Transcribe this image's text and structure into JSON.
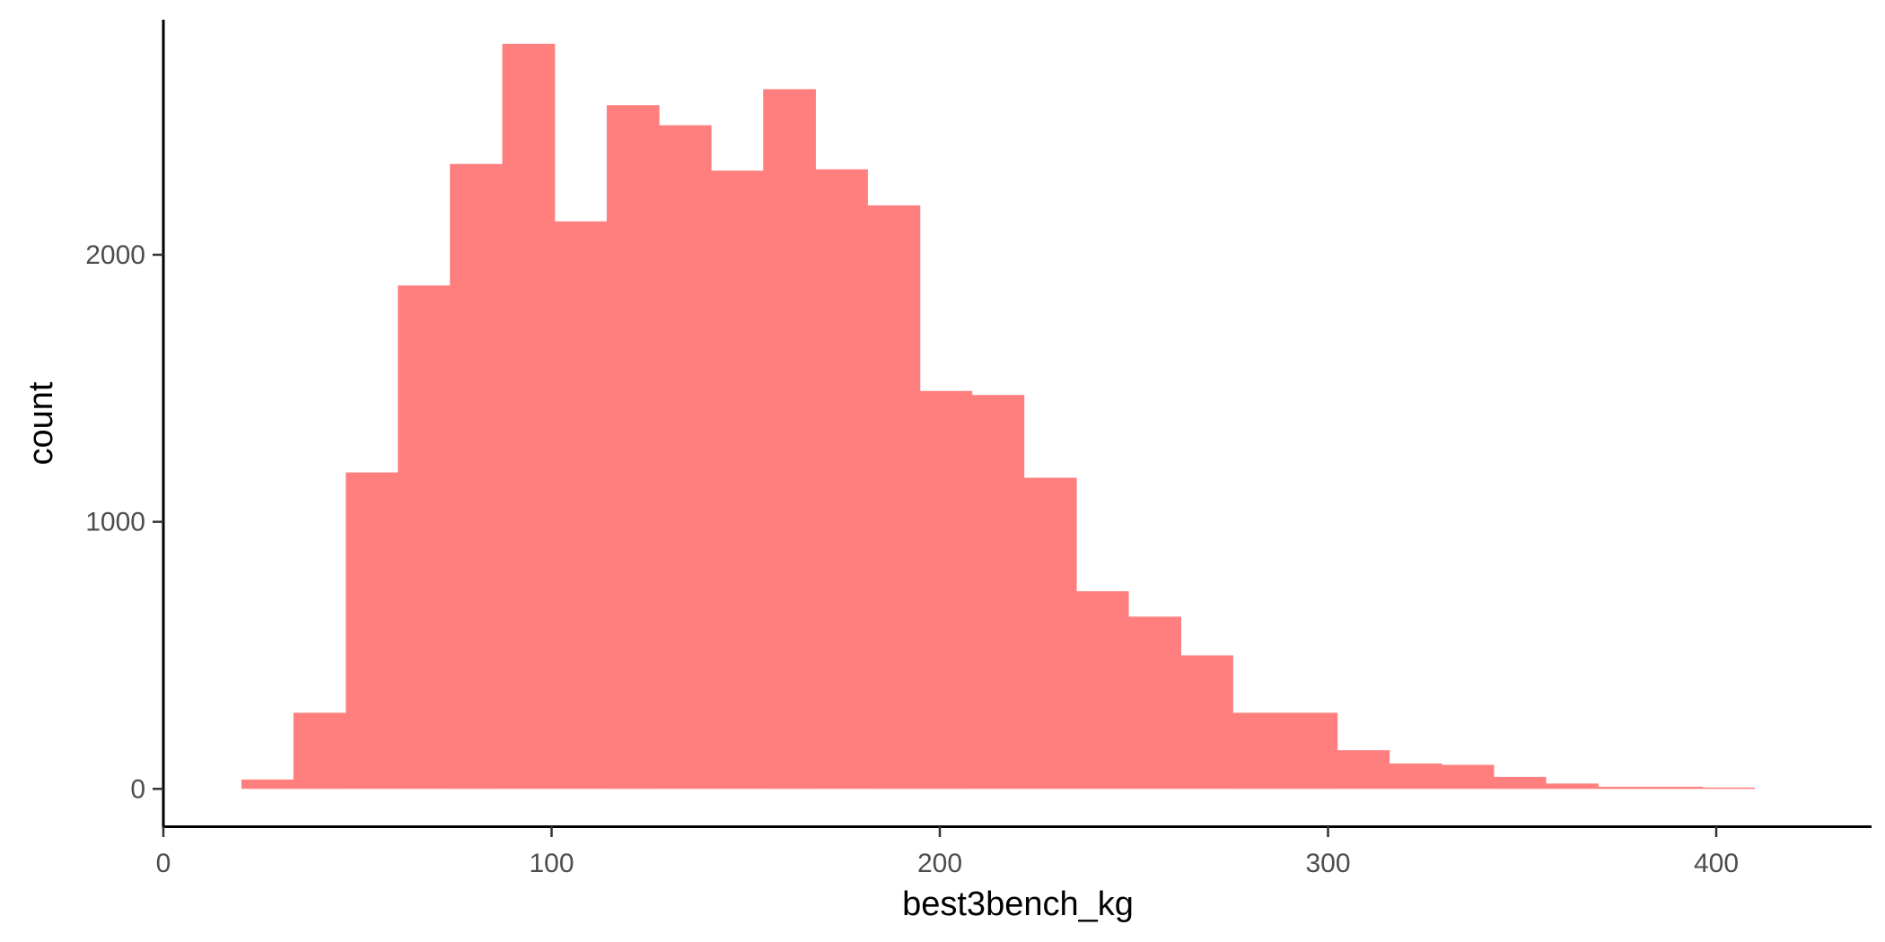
{
  "chart_data": {
    "type": "bar",
    "subtype": "histogram",
    "title": "",
    "xlabel": "best3bench_kg",
    "ylabel": "count",
    "xlim": [
      0,
      440
    ],
    "ylim": [
      -140,
      2880
    ],
    "x_ticks": [
      0,
      100,
      200,
      300,
      400
    ],
    "y_ticks": [
      0,
      1000,
      2000
    ],
    "grid": false,
    "legend": "none",
    "bar_color": "#FF7F7F",
    "bin_width": 13.44,
    "bins": [
      {
        "x_start": 20.1,
        "count": 35
      },
      {
        "x_start": 33.5,
        "count": 285
      },
      {
        "x_start": 47.0,
        "count": 1185
      },
      {
        "x_start": 60.4,
        "count": 1885
      },
      {
        "x_start": 73.8,
        "count": 2340
      },
      {
        "x_start": 87.3,
        "count": 2790
      },
      {
        "x_start": 100.7,
        "count": 2125
      },
      {
        "x_start": 114.2,
        "count": 2560
      },
      {
        "x_start": 127.6,
        "count": 2485
      },
      {
        "x_start": 141.0,
        "count": 2315
      },
      {
        "x_start": 154.5,
        "count": 2620
      },
      {
        "x_start": 167.9,
        "count": 2320
      },
      {
        "x_start": 181.4,
        "count": 2185
      },
      {
        "x_start": 194.8,
        "count": 1490
      },
      {
        "x_start": 208.2,
        "count": 1475
      },
      {
        "x_start": 221.7,
        "count": 1165
      },
      {
        "x_start": 235.1,
        "count": 740
      },
      {
        "x_start": 248.6,
        "count": 645
      },
      {
        "x_start": 262.0,
        "count": 500
      },
      {
        "x_start": 275.4,
        "count": 285
      },
      {
        "x_start": 288.9,
        "count": 285
      },
      {
        "x_start": 302.3,
        "count": 145
      },
      {
        "x_start": 315.8,
        "count": 95
      },
      {
        "x_start": 329.2,
        "count": 90
      },
      {
        "x_start": 342.6,
        "count": 45
      },
      {
        "x_start": 356.1,
        "count": 20
      },
      {
        "x_start": 369.5,
        "count": 8
      },
      {
        "x_start": 383.0,
        "count": 8
      },
      {
        "x_start": 396.4,
        "count": 5
      }
    ]
  }
}
